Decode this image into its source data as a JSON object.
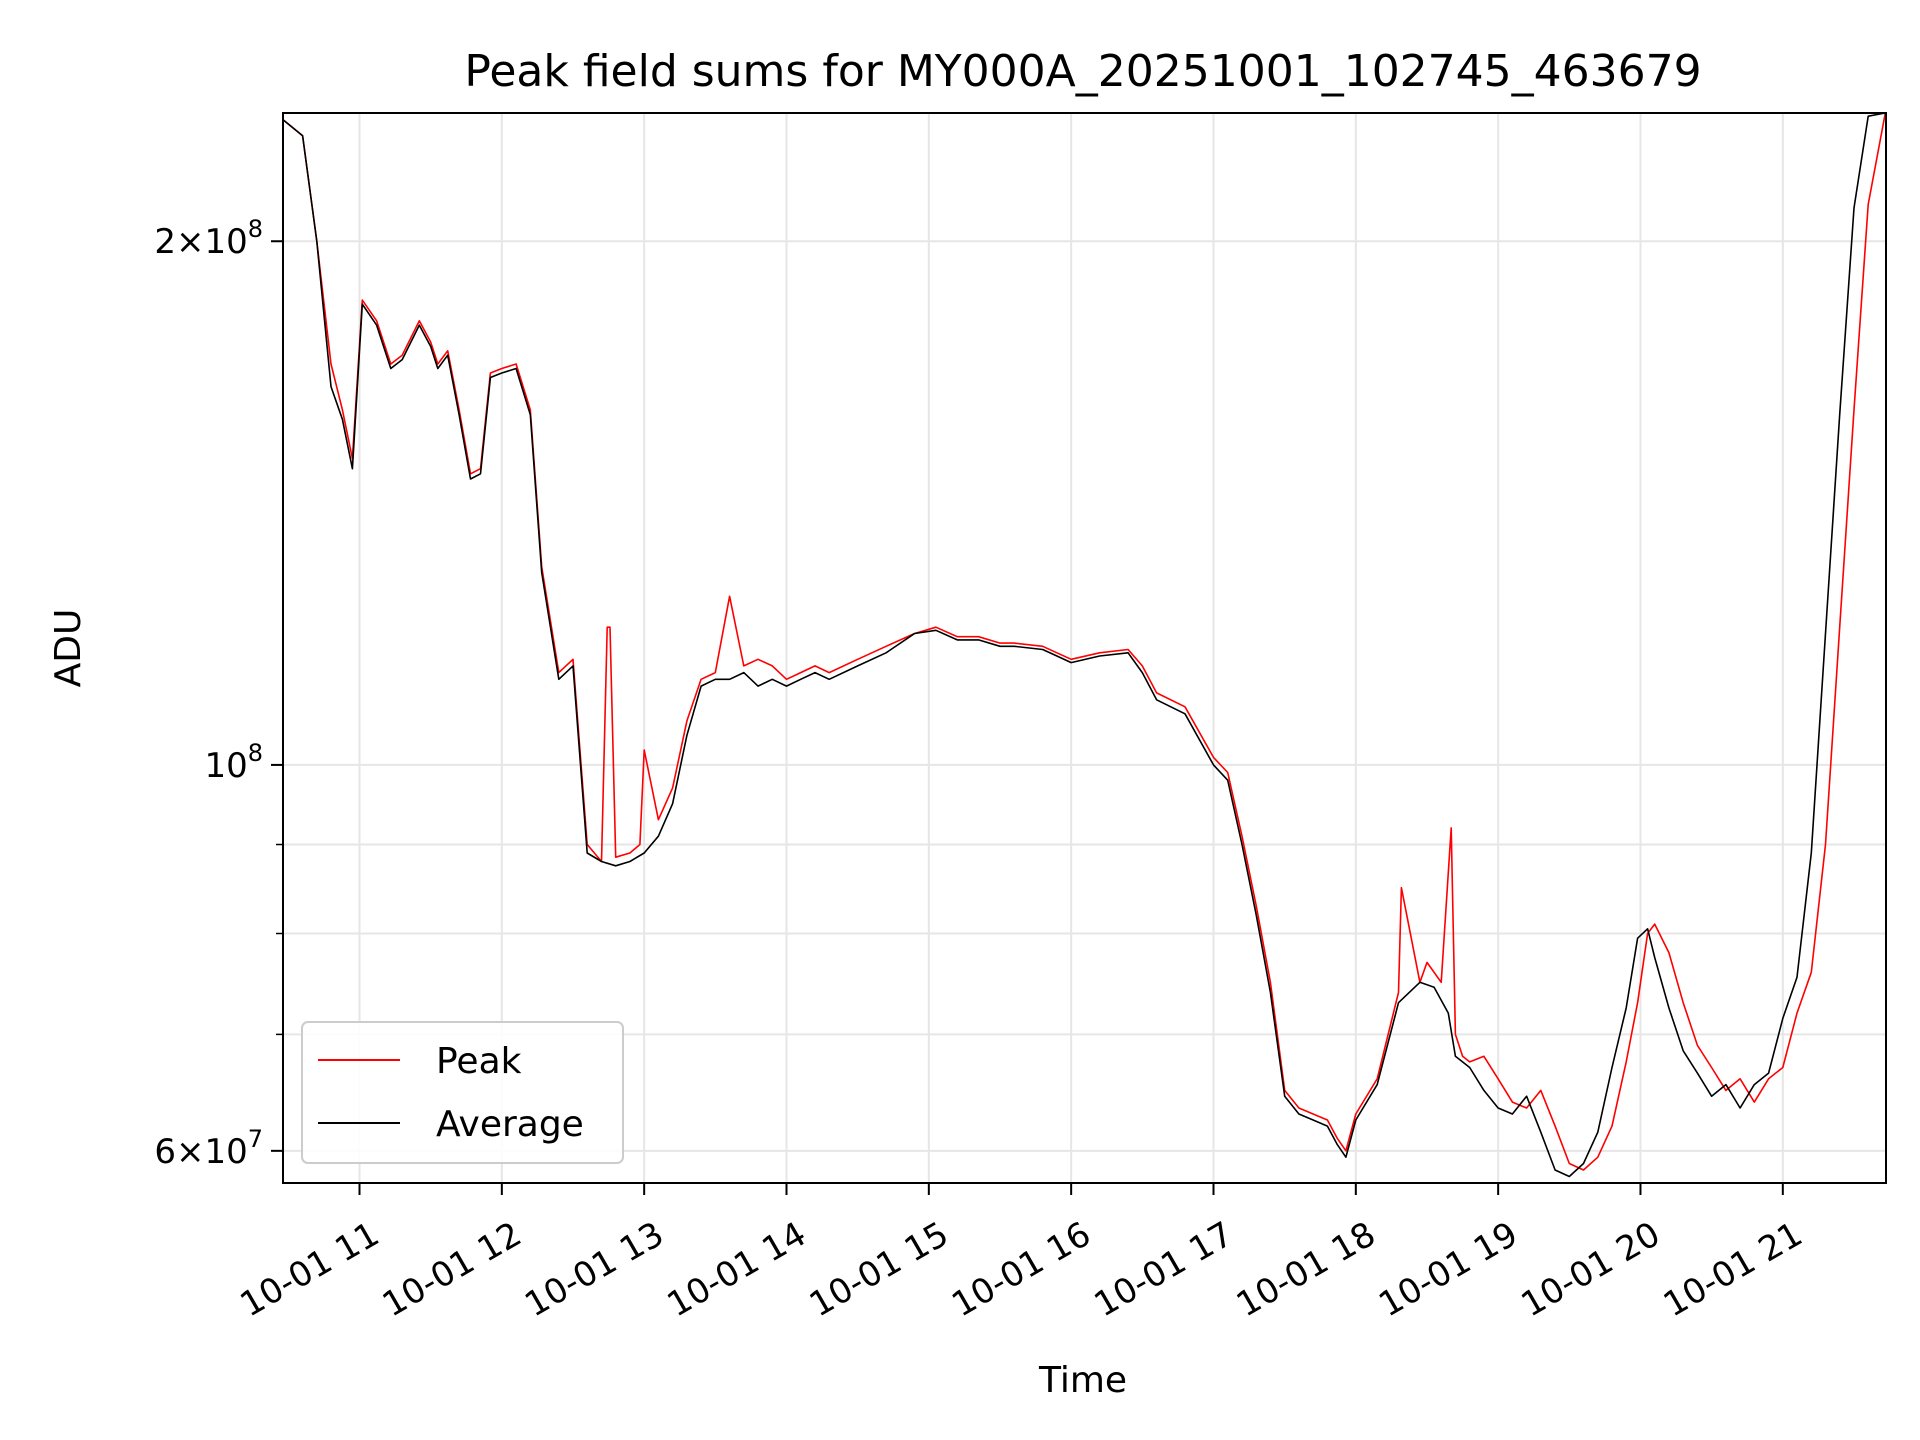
{
  "chart_data": {
    "type": "line",
    "title": "Peak field sums for MY000A_20251001_102745_463679",
    "xlabel": "Time",
    "ylabel": "ADU",
    "yscale": "log",
    "xlim": [
      10.4625,
      21.725
    ],
    "ylim": [
      57500000,
      237000000
    ],
    "grid": true,
    "legend_position": "lower-left",
    "x_ticks": [
      {
        "value": 11,
        "label": "10-01 11"
      },
      {
        "value": 12,
        "label": "10-01 12"
      },
      {
        "value": 13,
        "label": "10-01 13"
      },
      {
        "value": 14,
        "label": "10-01 14"
      },
      {
        "value": 15,
        "label": "10-01 15"
      },
      {
        "value": 16,
        "label": "10-01 16"
      },
      {
        "value": 17,
        "label": "10-01 17"
      },
      {
        "value": 18,
        "label": "10-01 18"
      },
      {
        "value": 19,
        "label": "10-01 19"
      },
      {
        "value": 20,
        "label": "10-01 20"
      },
      {
        "value": 21,
        "label": "10-01 21"
      }
    ],
    "y_ticks": [
      {
        "value": 60000000,
        "base": "6×10",
        "exp": "7"
      },
      {
        "value": 100000000,
        "base": "10",
        "exp": "8"
      },
      {
        "value": 200000000,
        "base": "2×10",
        "exp": "8"
      }
    ],
    "y_minor_ticks": [
      70000000,
      80000000,
      90000000
    ],
    "series": [
      {
        "name": "Peak",
        "color": "#ff0000",
        "x": [
          10.46,
          10.6,
          10.7,
          10.8,
          10.88,
          10.95,
          11.02,
          11.12,
          11.22,
          11.3,
          11.42,
          11.5,
          11.55,
          11.62,
          11.7,
          11.78,
          11.85,
          11.92,
          12.0,
          12.1,
          12.2,
          12.28,
          12.4,
          12.5,
          12.6,
          12.7,
          12.74,
          12.76,
          12.8,
          12.9,
          12.97,
          13.0,
          13.1,
          13.2,
          13.3,
          13.4,
          13.5,
          13.6,
          13.7,
          13.8,
          13.9,
          14.0,
          14.1,
          14.2,
          14.3,
          14.5,
          14.7,
          14.9,
          15.05,
          15.2,
          15.35,
          15.5,
          15.6,
          15.8,
          15.9,
          16.0,
          16.2,
          16.4,
          16.5,
          16.6,
          16.8,
          17.0,
          17.1,
          17.2,
          17.3,
          17.4,
          17.5,
          17.6,
          17.7,
          17.8,
          17.87,
          17.93,
          18.0,
          18.15,
          18.3,
          18.32,
          18.45,
          18.5,
          18.6,
          18.67,
          18.7,
          18.75,
          18.8,
          18.9,
          19.0,
          19.1,
          19.2,
          19.3,
          19.4,
          19.5,
          19.6,
          19.7,
          19.8,
          19.9,
          19.98,
          20.05,
          20.1,
          20.2,
          20.3,
          20.4,
          20.5,
          20.6,
          20.7,
          20.8,
          20.9,
          21.0,
          21.1,
          21.2,
          21.3,
          21.4,
          21.5,
          21.6,
          21.72
        ],
        "y": [
          235000000,
          230000000,
          200000000,
          170000000,
          160000000,
          150000000,
          185000000,
          180000000,
          170000000,
          172000000,
          180000000,
          175000000,
          170000000,
          173000000,
          160000000,
          147000000,
          148000000,
          168000000,
          169000000,
          170000000,
          160000000,
          130000000,
          113000000,
          115000000,
          90000000,
          88000000,
          120000000,
          120000000,
          88500000,
          89000000,
          90000000,
          102000000,
          93000000,
          97000000,
          106000000,
          112000000,
          113000000,
          125000000,
          114000000,
          115000000,
          114000000,
          112000000,
          113000000,
          114000000,
          113000000,
          115000000,
          117000000,
          119000000,
          120000000,
          118500000,
          118500000,
          117500000,
          117500000,
          117000000,
          116000000,
          115000000,
          116000000,
          116500000,
          114000000,
          110000000,
          108000000,
          101000000,
          99000000,
          91000000,
          83000000,
          75000000,
          65000000,
          63500000,
          63000000,
          62500000,
          61000000,
          60000000,
          63000000,
          66000000,
          74000000,
          85000000,
          75000000,
          77000000,
          75000000,
          92000000,
          70000000,
          68000000,
          67500000,
          68000000,
          66000000,
          64000000,
          63500000,
          65000000,
          62000000,
          59000000,
          58500000,
          59500000,
          62000000,
          67500000,
          73000000,
          80000000,
          81000000,
          78000000,
          73000000,
          69000000,
          67000000,
          65000000,
          66000000,
          64000000,
          66000000,
          67000000,
          72000000,
          76000000,
          90000000,
          120000000,
          160000000,
          210000000,
          237000000
        ]
      },
      {
        "name": "Average",
        "color": "#000000",
        "x": [
          10.46,
          10.6,
          10.7,
          10.8,
          10.88,
          10.95,
          11.02,
          11.12,
          11.22,
          11.3,
          11.42,
          11.5,
          11.55,
          11.62,
          11.7,
          11.78,
          11.85,
          11.92,
          12.0,
          12.1,
          12.2,
          12.28,
          12.4,
          12.5,
          12.6,
          12.7,
          12.8,
          12.9,
          13.0,
          13.1,
          13.2,
          13.3,
          13.4,
          13.5,
          13.6,
          13.7,
          13.8,
          13.9,
          14.0,
          14.1,
          14.2,
          14.3,
          14.5,
          14.7,
          14.9,
          15.05,
          15.2,
          15.35,
          15.5,
          15.6,
          15.8,
          15.9,
          16.0,
          16.2,
          16.4,
          16.5,
          16.6,
          16.8,
          17.0,
          17.1,
          17.2,
          17.3,
          17.4,
          17.5,
          17.6,
          17.7,
          17.8,
          17.87,
          17.93,
          18.0,
          18.15,
          18.3,
          18.45,
          18.55,
          18.65,
          18.7,
          18.8,
          18.9,
          19.0,
          19.1,
          19.2,
          19.3,
          19.4,
          19.5,
          19.6,
          19.7,
          19.8,
          19.9,
          19.98,
          20.05,
          20.1,
          20.2,
          20.3,
          20.4,
          20.5,
          20.6,
          20.7,
          20.8,
          20.9,
          21.0,
          21.1,
          21.2,
          21.3,
          21.4,
          21.5,
          21.6,
          21.72
        ],
        "y": [
          235000000,
          230000000,
          200000000,
          165000000,
          158000000,
          148000000,
          184000000,
          179000000,
          169000000,
          171000000,
          179000000,
          174000000,
          169000000,
          172000000,
          159000000,
          146000000,
          147000000,
          167000000,
          168000000,
          169000000,
          159000000,
          129000000,
          112000000,
          114000000,
          89000000,
          88000000,
          87500000,
          88000000,
          89000000,
          91000000,
          95000000,
          104000000,
          111000000,
          112000000,
          112000000,
          113000000,
          111000000,
          112000000,
          111000000,
          112000000,
          113000000,
          112000000,
          114000000,
          116000000,
          119000000,
          119500000,
          118000000,
          118000000,
          117000000,
          117000000,
          116500000,
          115500000,
          114500000,
          115500000,
          116000000,
          113000000,
          109000000,
          107000000,
          100000000,
          98000000,
          90000000,
          82000000,
          74000000,
          64500000,
          63000000,
          62500000,
          62000000,
          60500000,
          59500000,
          62500000,
          65500000,
          73000000,
          75000000,
          74500000,
          72000000,
          68000000,
          67000000,
          65000000,
          63500000,
          63000000,
          64500000,
          61500000,
          58500000,
          58000000,
          59000000,
          61500000,
          67000000,
          72500000,
          79500000,
          80500000,
          77500000,
          72500000,
          68500000,
          66500000,
          64500000,
          65500000,
          63500000,
          65500000,
          66500000,
          71500000,
          75500000,
          89000000,
          119000000,
          159000000,
          209000000,
          236000000,
          237000000
        ]
      }
    ]
  }
}
